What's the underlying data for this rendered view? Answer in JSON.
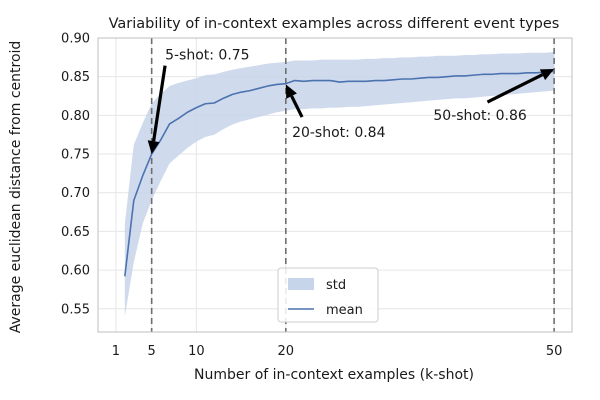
{
  "chart_data": {
    "type": "line",
    "title": "Variability of in-context examples across different event types",
    "xlabel": "Number of in-context examples (k-shot)",
    "ylabel": "Average euclidean distance from centroid",
    "xlim": [
      -1,
      52
    ],
    "ylim": [
      0.52,
      0.9
    ],
    "xticks": [
      1,
      5,
      10,
      20,
      50
    ],
    "yticks": [
      0.55,
      0.6,
      0.65,
      0.7,
      0.75,
      0.8,
      0.85,
      0.9
    ],
    "grid": true,
    "legend": {
      "placement": "lower-center",
      "entries": [
        "std",
        "mean"
      ]
    },
    "colors": {
      "mean": "#4c72b0",
      "std": "#c7d5ea"
    },
    "series": [
      {
        "name": "mean",
        "x": [
          2,
          3,
          4,
          5,
          6,
          7,
          8,
          9,
          10,
          11,
          12,
          13,
          14,
          15,
          16,
          17,
          18,
          19,
          20,
          21,
          22,
          23,
          24,
          25,
          26,
          27,
          28,
          29,
          30,
          31,
          32,
          33,
          34,
          35,
          36,
          37,
          38,
          39,
          40,
          41,
          42,
          43,
          44,
          45,
          46,
          47,
          48,
          49,
          50
        ],
        "y": [
          0.592,
          0.69,
          0.722,
          0.75,
          0.768,
          0.789,
          0.796,
          0.804,
          0.81,
          0.815,
          0.816,
          0.822,
          0.827,
          0.83,
          0.832,
          0.835,
          0.838,
          0.84,
          0.841,
          0.845,
          0.844,
          0.845,
          0.845,
          0.845,
          0.843,
          0.844,
          0.844,
          0.844,
          0.845,
          0.845,
          0.846,
          0.847,
          0.847,
          0.848,
          0.849,
          0.849,
          0.85,
          0.851,
          0.851,
          0.852,
          0.853,
          0.853,
          0.854,
          0.854,
          0.854,
          0.855,
          0.855,
          0.856,
          0.857
        ]
      },
      {
        "name": "std",
        "x": [
          2,
          3,
          4,
          5,
          6,
          7,
          8,
          9,
          10,
          11,
          12,
          13,
          14,
          15,
          16,
          17,
          18,
          19,
          20,
          21,
          22,
          23,
          24,
          25,
          26,
          27,
          28,
          29,
          30,
          31,
          32,
          33,
          34,
          35,
          36,
          37,
          38,
          39,
          40,
          41,
          42,
          43,
          44,
          45,
          46,
          47,
          48,
          49,
          50
        ],
        "lower": [
          0.54,
          0.61,
          0.66,
          0.69,
          0.715,
          0.738,
          0.748,
          0.758,
          0.766,
          0.772,
          0.775,
          0.782,
          0.788,
          0.792,
          0.795,
          0.798,
          0.801,
          0.804,
          0.806,
          0.808,
          0.808,
          0.809,
          0.809,
          0.81,
          0.81,
          0.811,
          0.811,
          0.812,
          0.813,
          0.814,
          0.815,
          0.816,
          0.817,
          0.818,
          0.819,
          0.82,
          0.821,
          0.822,
          0.822,
          0.823,
          0.824,
          0.825,
          0.826,
          0.827,
          0.828,
          0.829,
          0.83,
          0.831,
          0.832
        ],
        "upper": [
          0.66,
          0.762,
          0.79,
          0.815,
          0.828,
          0.838,
          0.842,
          0.845,
          0.848,
          0.852,
          0.853,
          0.856,
          0.859,
          0.861,
          0.863,
          0.865,
          0.867,
          0.868,
          0.869,
          0.871,
          0.871,
          0.871,
          0.872,
          0.872,
          0.872,
          0.872,
          0.872,
          0.873,
          0.873,
          0.874,
          0.874,
          0.875,
          0.875,
          0.876,
          0.876,
          0.877,
          0.877,
          0.877,
          0.878,
          0.878,
          0.879,
          0.879,
          0.88,
          0.88,
          0.88,
          0.881,
          0.881,
          0.881,
          0.882
        ]
      }
    ],
    "vlines": [
      5,
      20,
      50
    ],
    "annotations": [
      {
        "text": "5-shot: 0.75",
        "x": 5,
        "y": 0.75,
        "text_x": 6.5,
        "text_y": 0.872
      },
      {
        "text": "20-shot: 0.84",
        "x": 20,
        "y": 0.84,
        "text_x": 20.7,
        "text_y": 0.772
      },
      {
        "text": "50-shot: 0.86",
        "x": 50,
        "y": 0.86,
        "text_x": 36.5,
        "text_y": 0.794
      }
    ]
  }
}
